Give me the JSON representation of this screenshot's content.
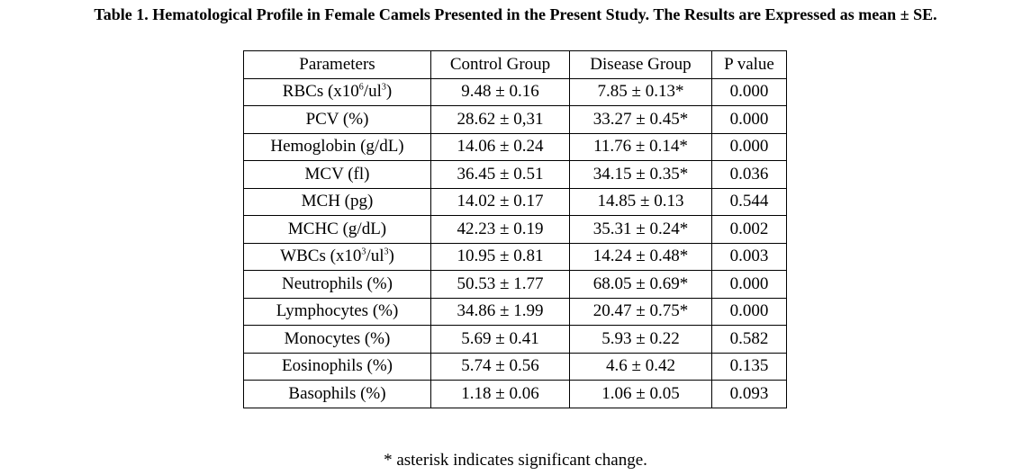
{
  "caption": "Table 1. Hematological Profile in Female Camels Presented in the Present Study. The Results are Expressed as mean ± SE.",
  "table": {
    "headers": [
      "Parameters",
      "Control Group",
      "Disease Group",
      "P value"
    ],
    "rows": [
      {
        "param": "RBCs (x10",
        "sup": "6",
        "param_suffix": "/ul",
        "sup2": "3",
        "param_end": ")",
        "control": "9.48 ± 0.16",
        "disease": "7.85 ± 0.13*",
        "p": "0.000"
      },
      {
        "param": "PCV (%)",
        "control": "28.62 ± 0,31",
        "disease": "33.27 ± 0.45*",
        "p": "0.000"
      },
      {
        "param": "Hemoglobin (g/dL)",
        "control": "14.06 ± 0.24",
        "disease": "11.76 ± 0.14*",
        "p": "0.000"
      },
      {
        "param": "MCV (fl)",
        "control": "36.45 ± 0.51",
        "disease": "34.15 ± 0.35*",
        "p": "0.036"
      },
      {
        "param": "MCH (pg)",
        "control": "14.02 ± 0.17",
        "disease": "14.85 ± 0.13",
        "p": "0.544"
      },
      {
        "param": "MCHC (g/dL)",
        "control": "42.23 ± 0.19",
        "disease": "35.31 ± 0.24*",
        "p": "0.002"
      },
      {
        "param": "WBCs (x10",
        "sup": "3",
        "param_suffix": "/ul",
        "sup2": "3",
        "param_end": ")",
        "control": "10.95 ± 0.81",
        "disease": "14.24 ± 0.48*",
        "p": "0.003"
      },
      {
        "param": "Neutrophils (%)",
        "control": "50.53 ± 1.77",
        "disease": "68.05 ± 0.69*",
        "p": "0.000"
      },
      {
        "param": "Lymphocytes (%)",
        "control": "34.86 ± 1.99",
        "disease": "20.47 ± 0.75*",
        "p": "0.000"
      },
      {
        "param": "Monocytes (%)",
        "control": "5.69 ± 0.41",
        "disease": "5.93 ± 0.22",
        "p": "0.582"
      },
      {
        "param": "Eosinophils (%)",
        "control": "5.74 ± 0.56",
        "disease": "4.6 ± 0.42",
        "p": "0.135"
      },
      {
        "param": "Basophils (%)",
        "control": "1.18 ± 0.06",
        "disease": "1.06 ± 0.05",
        "p": "0.093"
      }
    ]
  },
  "footnote": "* asterisk indicates significant change."
}
